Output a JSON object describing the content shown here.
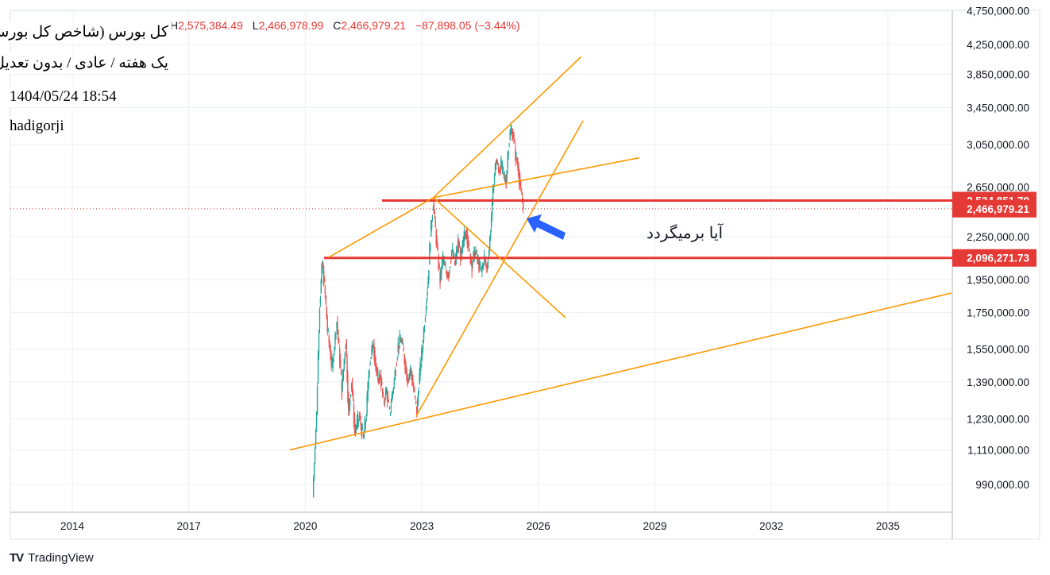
{
  "header": {
    "ohlc": [
      {
        "key": "H",
        "value": "2,575,384.49"
      },
      {
        "key": "L",
        "value": "2,466,978.99"
      },
      {
        "key": "C",
        "value": "2,466,979.21"
      }
    ],
    "change": "−87,898.05 (−3.44%)"
  },
  "info_box": {
    "title": "کل بورس (شاخص کل بورس)",
    "subtitle": "یک هفته / عادی / بدون تعدیل",
    "datetime": "1404/05/24 18:54",
    "author": "hadigorji"
  },
  "annotation": {
    "text": "آیا برمیگردد",
    "color": "#2962ff"
  },
  "branding": {
    "logo_mark": "TV",
    "logo_text": "TradingView"
  },
  "colors": {
    "up": "#26a69a",
    "down": "#ef5350",
    "trendline": "#ff9800",
    "level": "#e53935",
    "grid": "#eceff4",
    "axis_text": "#131722"
  },
  "chart_data": {
    "type": "candlestick",
    "timeframe": "1W",
    "scale": "log",
    "x_ticks": [
      "2014",
      "2017",
      "2020",
      "2023",
      "2026",
      "2029",
      "2032",
      "2035"
    ],
    "y_ticks": [
      "4,750,000.00",
      "4,250,000.00",
      "3,850,000.00",
      "3,450,000.00",
      "3,050,000.00",
      "2,650,000.00",
      "2,250,000.00",
      "1,950,000.00",
      "1,750,000.00",
      "1,550,000.00",
      "1,390,000.00",
      "1,230,000.00",
      "1,110,000.00",
      "990,000.00"
    ],
    "y_range": [
      880000,
      4800000
    ],
    "levels": [
      {
        "price": 2534851.79,
        "label": "2,534,851.79"
      },
      {
        "price": 2096271.73,
        "label": "2,096,271.73"
      }
    ],
    "last_price": {
      "price": 2466979.21,
      "label": "2,466,979.21"
    },
    "series_path": [
      [
        2020.2,
        950000
      ],
      [
        2020.3,
        1250000
      ],
      [
        2020.38,
        1800000
      ],
      [
        2020.45,
        2060000
      ],
      [
        2020.52,
        1850000
      ],
      [
        2020.58,
        1650000
      ],
      [
        2020.7,
        1450000
      ],
      [
        2020.82,
        1700000
      ],
      [
        2020.95,
        1350000
      ],
      [
        2021.05,
        1600000
      ],
      [
        2021.12,
        1250000
      ],
      [
        2021.2,
        1400000
      ],
      [
        2021.28,
        1180000
      ],
      [
        2021.4,
        1240000
      ],
      [
        2021.5,
        1150000
      ],
      [
        2021.58,
        1250000
      ],
      [
        2021.66,
        1480000
      ],
      [
        2021.76,
        1580000
      ],
      [
        2021.86,
        1400000
      ],
      [
        2021.94,
        1420000
      ],
      [
        2022.02,
        1300000
      ],
      [
        2022.1,
        1350000
      ],
      [
        2022.18,
        1250000
      ],
      [
        2022.3,
        1400000
      ],
      [
        2022.4,
        1570000
      ],
      [
        2022.48,
        1600000
      ],
      [
        2022.56,
        1500000
      ],
      [
        2022.64,
        1400000
      ],
      [
        2022.72,
        1450000
      ],
      [
        2022.8,
        1350000
      ],
      [
        2022.88,
        1260000
      ],
      [
        2022.95,
        1420000
      ],
      [
        2023.02,
        1550000
      ],
      [
        2023.1,
        1750000
      ],
      [
        2023.17,
        1950000
      ],
      [
        2023.23,
        2250000
      ],
      [
        2023.3,
        2520000
      ],
      [
        2023.36,
        2300000
      ],
      [
        2023.42,
        2100000
      ],
      [
        2023.48,
        1950000
      ],
      [
        2023.55,
        2100000
      ],
      [
        2023.62,
        2000000
      ],
      [
        2023.7,
        1990000
      ],
      [
        2023.78,
        2150000
      ],
      [
        2023.86,
        2050000
      ],
      [
        2023.94,
        2200000
      ],
      [
        2024.02,
        2100000
      ],
      [
        2024.1,
        2250000
      ],
      [
        2024.16,
        2300000
      ],
      [
        2024.22,
        2150000
      ],
      [
        2024.3,
        2050000
      ],
      [
        2024.38,
        2150000
      ],
      [
        2024.46,
        2060000
      ],
      [
        2024.54,
        2000000
      ],
      [
        2024.62,
        2100000
      ],
      [
        2024.68,
        2020000
      ],
      [
        2024.74,
        2150000
      ],
      [
        2024.8,
        2400000
      ],
      [
        2024.86,
        2700000
      ],
      [
        2024.92,
        2900000
      ],
      [
        2024.98,
        2800000
      ],
      [
        2025.05,
        2850000
      ],
      [
        2025.12,
        2750000
      ],
      [
        2025.18,
        2700000
      ],
      [
        2025.24,
        3050000
      ],
      [
        2025.3,
        3200000
      ],
      [
        2025.36,
        3150000
      ],
      [
        2025.42,
        2950000
      ],
      [
        2025.5,
        2800000
      ],
      [
        2025.56,
        2600000
      ],
      [
        2025.62,
        2467000
      ]
    ],
    "trendlines": [
      {
        "name": "upper-channel",
        "points": [
          [
            2020.6,
            2100000
          ],
          [
            2023.3,
            2560000
          ],
          [
            2028.6,
            2920000
          ]
        ]
      },
      {
        "name": "lower-channel",
        "points": [
          [
            2019.6,
            1110000
          ],
          [
            2036.7,
            1870000
          ]
        ]
      },
      {
        "name": "rising-wedge-top",
        "points": [
          [
            2023.3,
            2560000
          ],
          [
            2027.1,
            4080000
          ]
        ]
      },
      {
        "name": "steep-support",
        "points": [
          [
            2022.85,
            1240000
          ],
          [
            2027.15,
            3300000
          ]
        ]
      },
      {
        "name": "falling-line",
        "points": [
          [
            2023.3,
            2560000
          ],
          [
            2026.7,
            1720000
          ]
        ]
      }
    ]
  }
}
